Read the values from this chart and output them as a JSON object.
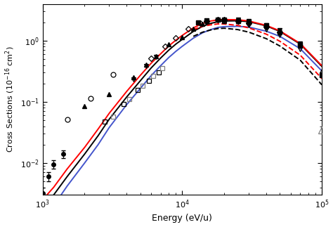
{
  "xlim": [
    1000,
    100000
  ],
  "ylim": [
    0.003,
    4.0
  ],
  "xlabel": "Energy (eV/u)",
  "ylabel": "Cross Sections (10$^{-16}$ cm$^2$)",
  "background_color": "#ffffff",
  "figsize": [
    4.74,
    3.23
  ],
  "dpi": 100,
  "curve_black_solid": {
    "x": [
      1000,
      1200,
      1500,
      2000,
      2500,
      3000,
      4000,
      5000,
      6000,
      7000,
      8000,
      9000,
      10000,
      12000,
      14000,
      16000,
      18000,
      20000,
      25000,
      30000,
      40000,
      50000,
      70000,
      100000
    ],
    "y": [
      0.0018,
      0.003,
      0.006,
      0.014,
      0.028,
      0.052,
      0.12,
      0.22,
      0.36,
      0.52,
      0.7,
      0.88,
      1.05,
      1.42,
      1.72,
      1.92,
      2.05,
      2.1,
      2.12,
      2.05,
      1.75,
      1.42,
      0.88,
      0.38
    ]
  },
  "curve_red_solid": {
    "x": [
      1000,
      1200,
      1500,
      2000,
      2500,
      3000,
      4000,
      5000,
      6000,
      7000,
      8000,
      9000,
      10000,
      12000,
      14000,
      16000,
      18000,
      20000,
      25000,
      30000,
      40000,
      50000,
      70000,
      100000
    ],
    "y": [
      0.0025,
      0.004,
      0.008,
      0.018,
      0.036,
      0.065,
      0.148,
      0.27,
      0.43,
      0.61,
      0.82,
      1.02,
      1.22,
      1.62,
      1.92,
      2.1,
      2.2,
      2.22,
      2.2,
      2.1,
      1.78,
      1.45,
      0.9,
      0.39
    ]
  },
  "curve_blue_solid": {
    "x": [
      1000,
      1200,
      1500,
      2000,
      2500,
      3000,
      4000,
      5000,
      6000,
      7000,
      8000,
      9000,
      10000,
      12000,
      14000,
      16000,
      18000,
      20000,
      25000,
      30000,
      40000,
      50000,
      70000,
      100000
    ],
    "y": [
      0.0012,
      0.002,
      0.0042,
      0.01,
      0.02,
      0.038,
      0.09,
      0.165,
      0.27,
      0.39,
      0.53,
      0.67,
      0.81,
      1.1,
      1.35,
      1.52,
      1.65,
      1.7,
      1.72,
      1.67,
      1.43,
      1.18,
      0.74,
      0.32
    ]
  },
  "curve_red_dashed": {
    "x": [
      12000,
      14000,
      16000,
      18000,
      20000,
      25000,
      30000,
      40000,
      50000,
      70000,
      100000
    ],
    "y": [
      1.52,
      1.72,
      1.82,
      1.88,
      1.88,
      1.78,
      1.62,
      1.28,
      0.98,
      0.58,
      0.24
    ]
  },
  "curve_black_dashed": {
    "x": [
      12000,
      14000,
      16000,
      18000,
      20000,
      25000,
      30000,
      40000,
      50000,
      70000,
      100000
    ],
    "y": [
      1.18,
      1.38,
      1.5,
      1.58,
      1.6,
      1.52,
      1.38,
      1.08,
      0.82,
      0.48,
      0.19
    ]
  },
  "scatter_filled_circle_yerr": {
    "x": [
      1000,
      1100,
      1200,
      1400
    ],
    "y": [
      0.0032,
      0.006,
      0.0095,
      0.014
    ],
    "yerr": [
      0.0008,
      0.001,
      0.0015,
      0.002
    ]
  },
  "scatter_open_circle_low": {
    "x": [
      1500,
      2200,
      3200
    ],
    "y": [
      0.052,
      0.115,
      0.28
    ]
  },
  "scatter_open_square_black": {
    "x": [
      2800,
      3800,
      4800,
      5800,
      6800
    ],
    "y": [
      0.048,
      0.092,
      0.155,
      0.22,
      0.3
    ]
  },
  "scatter_open_square_gray": {
    "x": [
      3200,
      4200,
      5200,
      6200,
      7200
    ],
    "y": [
      0.058,
      0.11,
      0.185,
      0.265,
      0.355
    ]
  },
  "scatter_open_inv_triangle": {
    "x": [
      4500,
      5500,
      6500
    ],
    "y": [
      0.235,
      0.38,
      0.55
    ]
  },
  "scatter_open_diamond": {
    "x": [
      6000,
      7500,
      9000,
      11000,
      13500
    ],
    "y": [
      0.52,
      0.8,
      1.1,
      1.55,
      1.95
    ]
  },
  "scatter_filled_triangle_up": {
    "x": [
      2000,
      3000,
      4500,
      5500,
      6500,
      8000,
      10000,
      12000,
      14000
    ],
    "y": [
      0.085,
      0.135,
      0.25,
      0.41,
      0.56,
      0.88,
      1.15,
      1.55,
      1.88
    ]
  },
  "scatter_filled_inv_triangle": {
    "x": [
      20000,
      25000,
      30000,
      40000,
      50000,
      70000
    ],
    "y": [
      2.15,
      2.18,
      2.1,
      1.78,
      1.48,
      0.9
    ]
  },
  "scatter_open_triangle_large": {
    "x": [
      100000
    ],
    "y": [
      0.035
    ]
  },
  "scatter_filled_square": {
    "x": [
      13000,
      15000,
      18000,
      20000,
      25000,
      30000,
      40000,
      70000,
      100000
    ],
    "y": [
      2.0,
      2.15,
      2.2,
      2.18,
      2.12,
      2.05,
      1.78,
      0.88,
      0.27
    ]
  },
  "scatter_filled_diamond": {
    "x": [
      15000,
      18000,
      20000,
      25000,
      30000,
      40000,
      50000
    ],
    "y": [
      2.12,
      2.18,
      2.18,
      2.08,
      1.95,
      1.68,
      1.38
    ]
  },
  "scatter_open_circle_high": {
    "x": [
      15000,
      20000,
      25000,
      30000,
      40000,
      50000,
      70000
    ],
    "y": [
      2.05,
      2.12,
      2.1,
      2.0,
      1.72,
      1.4,
      0.86
    ]
  },
  "scatter_open_triangle_up_high": {
    "x": [
      20000,
      25000,
      30000,
      40000,
      50000,
      70000,
      100000
    ],
    "y": [
      2.1,
      2.1,
      2.0,
      1.72,
      1.38,
      0.82,
      0.32
    ]
  },
  "scatter_open_inv_triangle_high": {
    "x": [
      30000,
      40000,
      50000,
      70000,
      100000
    ],
    "y": [
      1.8,
      1.52,
      1.22,
      0.72,
      0.28
    ]
  }
}
